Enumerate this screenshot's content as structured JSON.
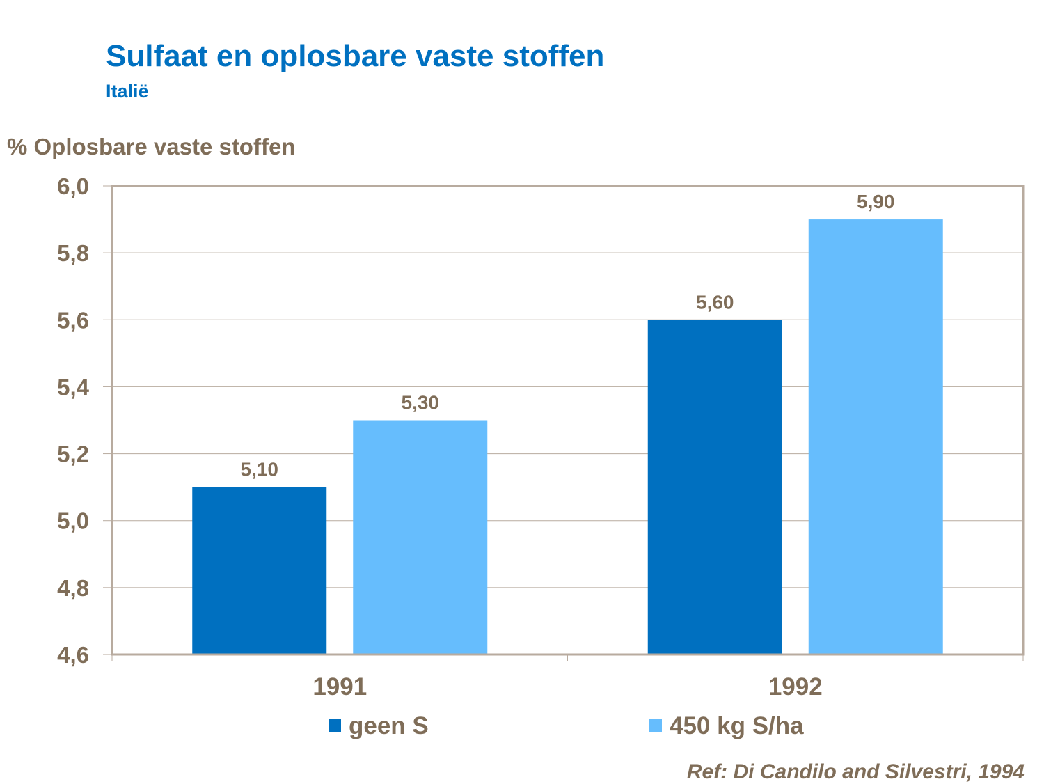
{
  "chart_data": {
    "type": "bar",
    "title": "Sulfaat en oplosbare vaste stoffen",
    "subtitle": "Italië",
    "ylabel": "% Oplosbare vaste stoffen",
    "xlabel": "",
    "categories": [
      "1991",
      "1992"
    ],
    "series": [
      {
        "name": "geen S",
        "values": [
          5.1,
          5.6
        ],
        "labels": [
          "5,10",
          "5,60"
        ],
        "color": "#0070c0"
      },
      {
        "name": "450 kg S/ha",
        "values": [
          5.3,
          5.9
        ],
        "labels": [
          "5,30",
          "5,90"
        ],
        "color": "#66bdfd"
      }
    ],
    "ylim": [
      4.6,
      6.0
    ],
    "yticks": [
      4.6,
      4.8,
      5.0,
      5.2,
      5.4,
      5.6,
      5.8,
      6.0
    ],
    "ytick_labels": [
      "4,6",
      "4,8",
      "5,0",
      "5,2",
      "5,4",
      "5,6",
      "5,8",
      "6,0"
    ],
    "grid": true,
    "legend": "bottom",
    "source": "Ref: Di Candilo and Silvestri, 1994",
    "colors": {
      "text": "#7f6d58",
      "axis": "#b8ab9f",
      "title": "#0070c0"
    }
  }
}
